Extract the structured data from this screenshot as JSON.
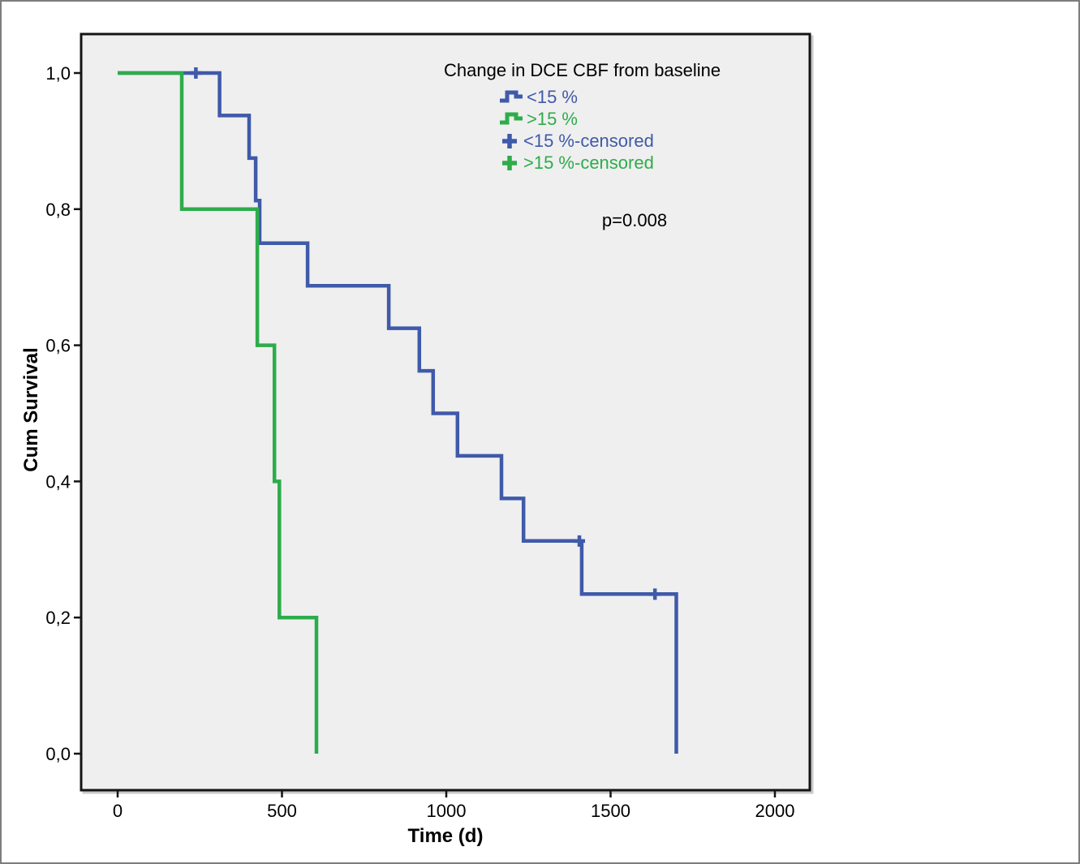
{
  "chart_data": {
    "type": "line",
    "subtype": "kaplan-meier-step",
    "title": "Change in DCE CBF from baseline",
    "xlabel": "Time (d)",
    "ylabel": "Cum Survival",
    "x_ticks": [
      0,
      500,
      1000,
      1500,
      2000
    ],
    "x_tick_labels": [
      "0",
      "500",
      "1000",
      "1500",
      "2000"
    ],
    "y_ticks": [
      0.0,
      0.2,
      0.4,
      0.6,
      0.8,
      1.0
    ],
    "y_tick_labels": [
      "0,0",
      "0,2",
      "0,4",
      "0,6",
      "0,8",
      "1,0"
    ],
    "xlim": [
      -111,
      2106
    ],
    "ylim": [
      -0.054,
      1.057
    ],
    "grid": false,
    "plot_background": "#EFEFEF",
    "frame_color": "#141414",
    "legend_position": "top-center-inside",
    "annotation": "p=0.008",
    "series": [
      {
        "name": "<15 %",
        "color": "#3F5AA9",
        "points": [
          [
            0,
            1.0
          ],
          [
            310,
            1.0
          ],
          [
            310,
            0.9375
          ],
          [
            400,
            0.9375
          ],
          [
            400,
            0.875
          ],
          [
            420,
            0.875
          ],
          [
            420,
            0.8125
          ],
          [
            432,
            0.8125
          ],
          [
            432,
            0.75
          ],
          [
            578,
            0.75
          ],
          [
            578,
            0.6875
          ],
          [
            825,
            0.6875
          ],
          [
            825,
            0.625
          ],
          [
            918,
            0.625
          ],
          [
            918,
            0.5625
          ],
          [
            960,
            0.5625
          ],
          [
            960,
            0.5
          ],
          [
            1034,
            0.5
          ],
          [
            1034,
            0.4375
          ],
          [
            1168,
            0.4375
          ],
          [
            1168,
            0.375
          ],
          [
            1235,
            0.375
          ],
          [
            1235,
            0.3125
          ],
          [
            1412,
            0.3125
          ],
          [
            1412,
            0.2344
          ],
          [
            1700,
            0.2344
          ],
          [
            1700,
            0.0
          ]
        ],
        "censored_points": [
          [
            238,
            1.0
          ],
          [
            1405,
            0.3125
          ],
          [
            1635,
            0.2344
          ]
        ]
      },
      {
        "name": ">15 %",
        "color": "#2EAC4B",
        "points": [
          [
            0,
            1.0
          ],
          [
            195,
            1.0
          ],
          [
            195,
            0.8
          ],
          [
            425,
            0.8
          ],
          [
            425,
            0.6
          ],
          [
            477,
            0.6
          ],
          [
            477,
            0.4
          ],
          [
            492,
            0.4
          ],
          [
            492,
            0.2
          ],
          [
            605,
            0.2
          ],
          [
            605,
            0.0
          ]
        ],
        "censored_points": []
      }
    ],
    "legend": {
      "title": "Change in DCE CBF from baseline",
      "items": [
        {
          "label": "<15 %",
          "symbol": "step",
          "color": "#3F5AA9"
        },
        {
          "label": ">15 %",
          "symbol": "step",
          "color": "#2EAC4B"
        },
        {
          "label": "<15 %-censored",
          "symbol": "plus",
          "color": "#3F5AA9"
        },
        {
          "label": ">15 %-censored",
          "symbol": "plus",
          "color": "#2EAC4B"
        }
      ]
    }
  }
}
